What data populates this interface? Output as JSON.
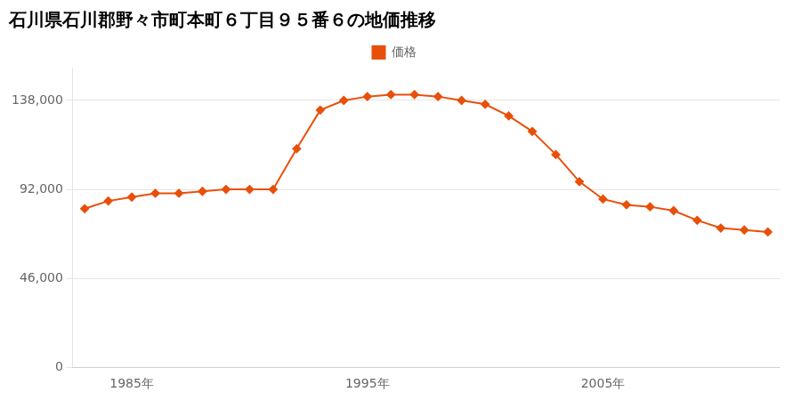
{
  "chart_data": {
    "type": "line",
    "title": "石川県石川郡野々市町本町６丁目９５番６の地価推移",
    "x": [
      1983,
      1984,
      1985,
      1986,
      1987,
      1988,
      1989,
      1990,
      1991,
      1992,
      1993,
      1994,
      1995,
      1996,
      1997,
      1998,
      1999,
      2000,
      2001,
      2002,
      2003,
      2004,
      2005,
      2006,
      2007,
      2008,
      2009,
      2010,
      2011,
      2012
    ],
    "series": [
      {
        "name": "価格",
        "color": "#E8500A",
        "marker": "diamond",
        "values": [
          82000,
          86000,
          88000,
          90000,
          90000,
          91000,
          92000,
          92000,
          92000,
          113000,
          133000,
          138000,
          140000,
          141000,
          141000,
          140000,
          138000,
          136000,
          130000,
          122000,
          110000,
          96000,
          87000,
          84000,
          83000,
          81000,
          76000,
          72000,
          71000,
          70000
        ]
      }
    ],
    "xlim": [
      1982.5,
      2012.5
    ],
    "xticks": [
      {
        "value": 1985,
        "label": "1985年"
      },
      {
        "value": 1995,
        "label": "1995年"
      },
      {
        "value": 2005,
        "label": "2005年"
      }
    ],
    "ylim": [
      0,
      155000
    ],
    "yticks": [
      0,
      {
        "value": 46000,
        "label": "46,000"
      },
      {
        "value": 92000,
        "label": "92,000"
      },
      {
        "value": 138000,
        "label": "138,000"
      }
    ],
    "grid": "y",
    "legend": "top"
  }
}
